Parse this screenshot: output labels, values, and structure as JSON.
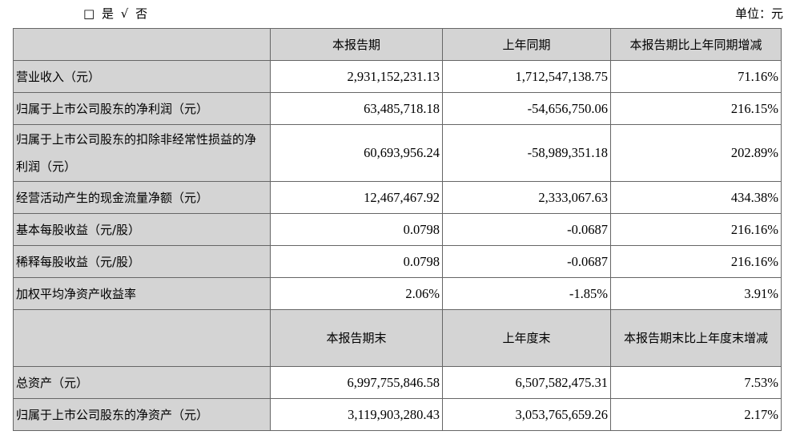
{
  "retroactive": {
    "no_box": "□",
    "yes_label": "是",
    "check": "√",
    "no_label": "否"
  },
  "unit": "单位：元",
  "header1": [
    "",
    "本报告期",
    "上年同期",
    "本报告期比上年同期增减"
  ],
  "rows1": [
    [
      "营业收入（元）",
      "2,931,152,231.13",
      "1,712,547,138.75",
      "71.16%"
    ],
    [
      "归属于上市公司股东的净利润（元）",
      "63,485,718.18",
      "-54,656,750.06",
      "216.15%"
    ],
    [
      "归属于上市公司股东的扣除非经常性损益的净利润（元）",
      "60,693,956.24",
      "-58,989,351.18",
      "202.89%"
    ],
    [
      "经营活动产生的现金流量净额（元）",
      "12,467,467.92",
      "2,333,067.63",
      "434.38%"
    ],
    [
      "基本每股收益（元/股）",
      "0.0798",
      "-0.0687",
      "216.16%"
    ],
    [
      "稀释每股收益（元/股）",
      "0.0798",
      "-0.0687",
      "216.16%"
    ],
    [
      "加权平均净资产收益率",
      "2.06%",
      "-1.85%",
      "3.91%"
    ]
  ],
  "header2": [
    "",
    "本报告期末",
    "上年度末",
    "本报告期末比上年度末增减"
  ],
  "rows2": [
    [
      "总资产（元）",
      "6,997,755,846.58",
      "6,507,582,475.31",
      "7.53%"
    ],
    [
      "归属于上市公司股东的净资产（元）",
      "3,119,903,280.43",
      "3,053,765,659.26",
      "2.17%"
    ]
  ]
}
